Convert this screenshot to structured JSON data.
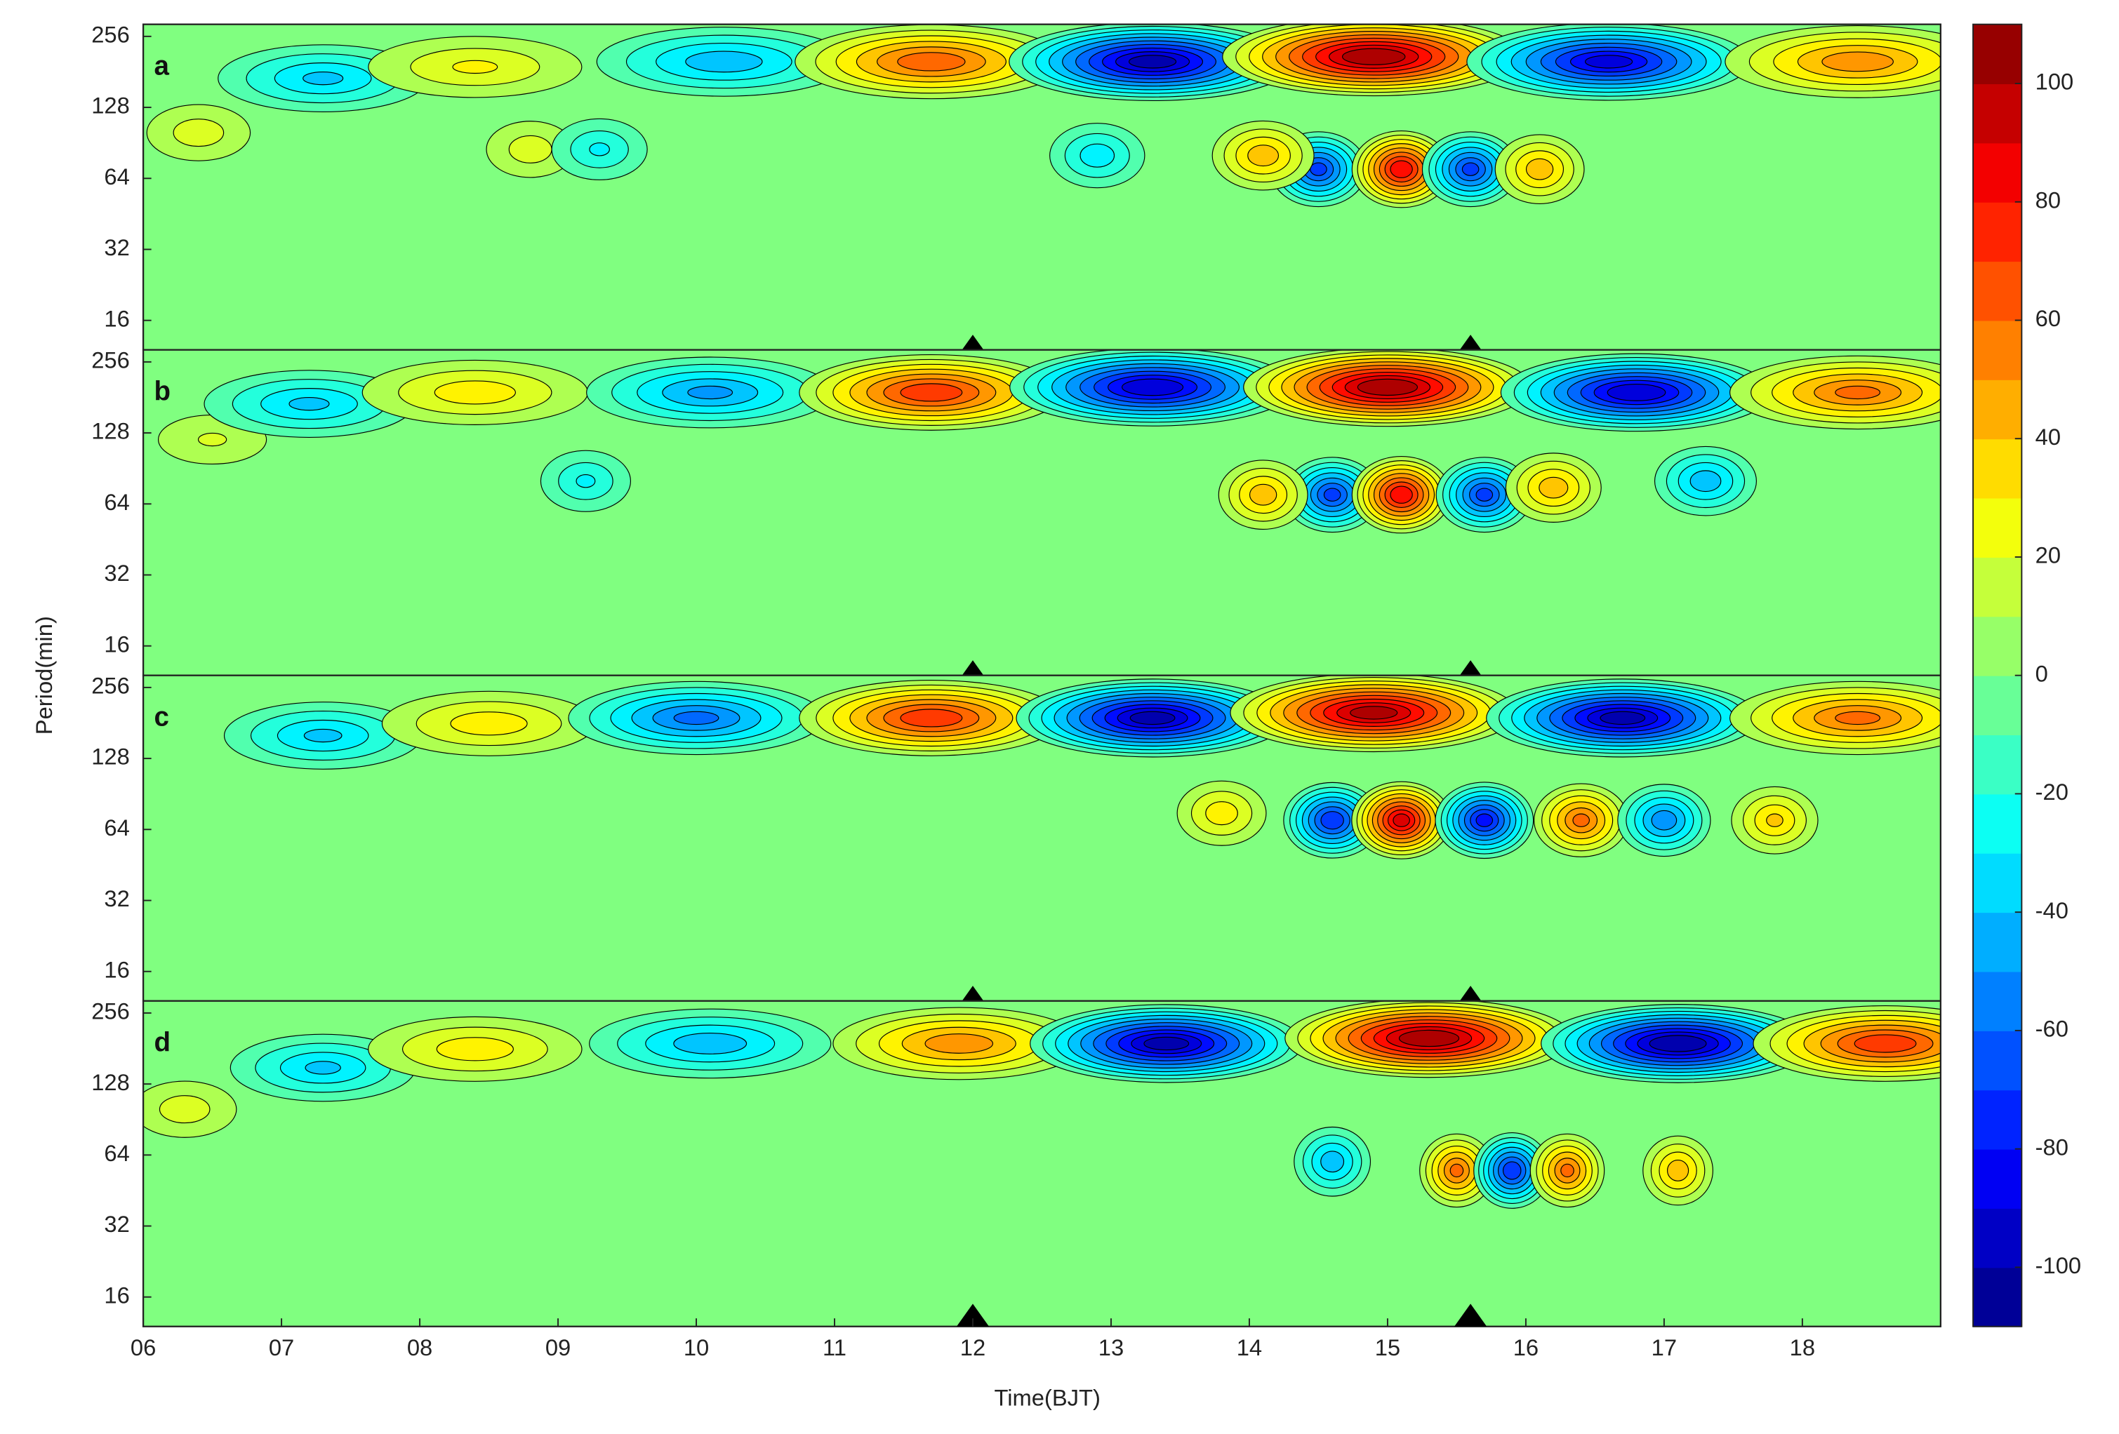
{
  "chart_data": {
    "type": "contour",
    "xlabel": "Time(BJT)",
    "ylabel": "Period(min)",
    "xlim": [
      6,
      19
    ],
    "xticks": [
      {
        "value": 6,
        "label": "06"
      },
      {
        "value": 7,
        "label": "07"
      },
      {
        "value": 8,
        "label": "08"
      },
      {
        "value": 9,
        "label": "09"
      },
      10,
      11,
      12,
      13,
      14,
      15,
      16,
      17,
      18
    ],
    "ylim": [
      12,
      288
    ],
    "yticks": [
      16,
      32,
      64,
      128,
      256
    ],
    "log_y": true,
    "clim": [
      -110,
      110
    ],
    "cticks": [
      -100,
      -80,
      -60,
      -40,
      -20,
      0,
      20,
      40,
      60,
      80,
      100
    ],
    "colormap": "jet",
    "markers": [
      12,
      15.6
    ],
    "panels": [
      {
        "label": "a",
        "extrema": [
          [
            6.4,
            100,
            25
          ],
          [
            7.3,
            170,
            -40
          ],
          [
            8.4,
            190,
            30
          ],
          [
            10.2,
            200,
            -45
          ],
          [
            11.7,
            200,
            65
          ],
          [
            13.3,
            200,
            -100
          ],
          [
            14.9,
            210,
            105
          ],
          [
            16.6,
            200,
            -90
          ],
          [
            18.4,
            200,
            55
          ],
          [
            14.5,
            70,
            -70
          ],
          [
            15.1,
            70,
            85
          ],
          [
            15.6,
            70,
            -70
          ],
          [
            14.1,
            80,
            45
          ],
          [
            16.1,
            70,
            45
          ],
          [
            12.9,
            80,
            -35
          ],
          [
            8.8,
            85,
            25
          ],
          [
            9.3,
            85,
            -30
          ]
        ]
      },
      {
        "label": "b",
        "extrema": [
          [
            6.5,
            120,
            20
          ],
          [
            7.2,
            170,
            -40
          ],
          [
            8.4,
            190,
            35
          ],
          [
            10.1,
            190,
            -50
          ],
          [
            11.7,
            190,
            75
          ],
          [
            13.3,
            200,
            -95
          ],
          [
            15.0,
            200,
            105
          ],
          [
            16.8,
            190,
            -95
          ],
          [
            18.4,
            190,
            60
          ],
          [
            14.6,
            70,
            -70
          ],
          [
            15.1,
            70,
            85
          ],
          [
            15.7,
            70,
            -70
          ],
          [
            14.1,
            70,
            45
          ],
          [
            16.2,
            75,
            45
          ],
          [
            17.3,
            80,
            -45
          ],
          [
            9.2,
            80,
            -30
          ]
        ]
      },
      {
        "label": "c",
        "extrema": [
          [
            7.3,
            160,
            -40
          ],
          [
            8.5,
            180,
            35
          ],
          [
            10.0,
            190,
            -60
          ],
          [
            11.7,
            190,
            75
          ],
          [
            13.3,
            190,
            -100
          ],
          [
            14.9,
            200,
            100
          ],
          [
            16.7,
            190,
            -100
          ],
          [
            18.4,
            190,
            60
          ],
          [
            14.6,
            70,
            -75
          ],
          [
            15.1,
            70,
            90
          ],
          [
            15.7,
            70,
            -80
          ],
          [
            16.4,
            70,
            60
          ],
          [
            17.0,
            70,
            -55
          ],
          [
            17.8,
            70,
            40
          ],
          [
            13.8,
            75,
            35
          ]
        ]
      },
      {
        "label": "d",
        "extrema": [
          [
            6.3,
            100,
            25
          ],
          [
            7.3,
            150,
            -40
          ],
          [
            8.4,
            180,
            35
          ],
          [
            10.1,
            190,
            -45
          ],
          [
            11.9,
            190,
            55
          ],
          [
            13.4,
            190,
            -100
          ],
          [
            15.3,
            200,
            105
          ],
          [
            17.1,
            190,
            -105
          ],
          [
            18.6,
            190,
            75
          ],
          [
            15.5,
            55,
            60
          ],
          [
            15.9,
            55,
            -75
          ],
          [
            16.3,
            55,
            60
          ],
          [
            14.6,
            60,
            -45
          ],
          [
            17.1,
            55,
            45
          ]
        ]
      }
    ]
  }
}
